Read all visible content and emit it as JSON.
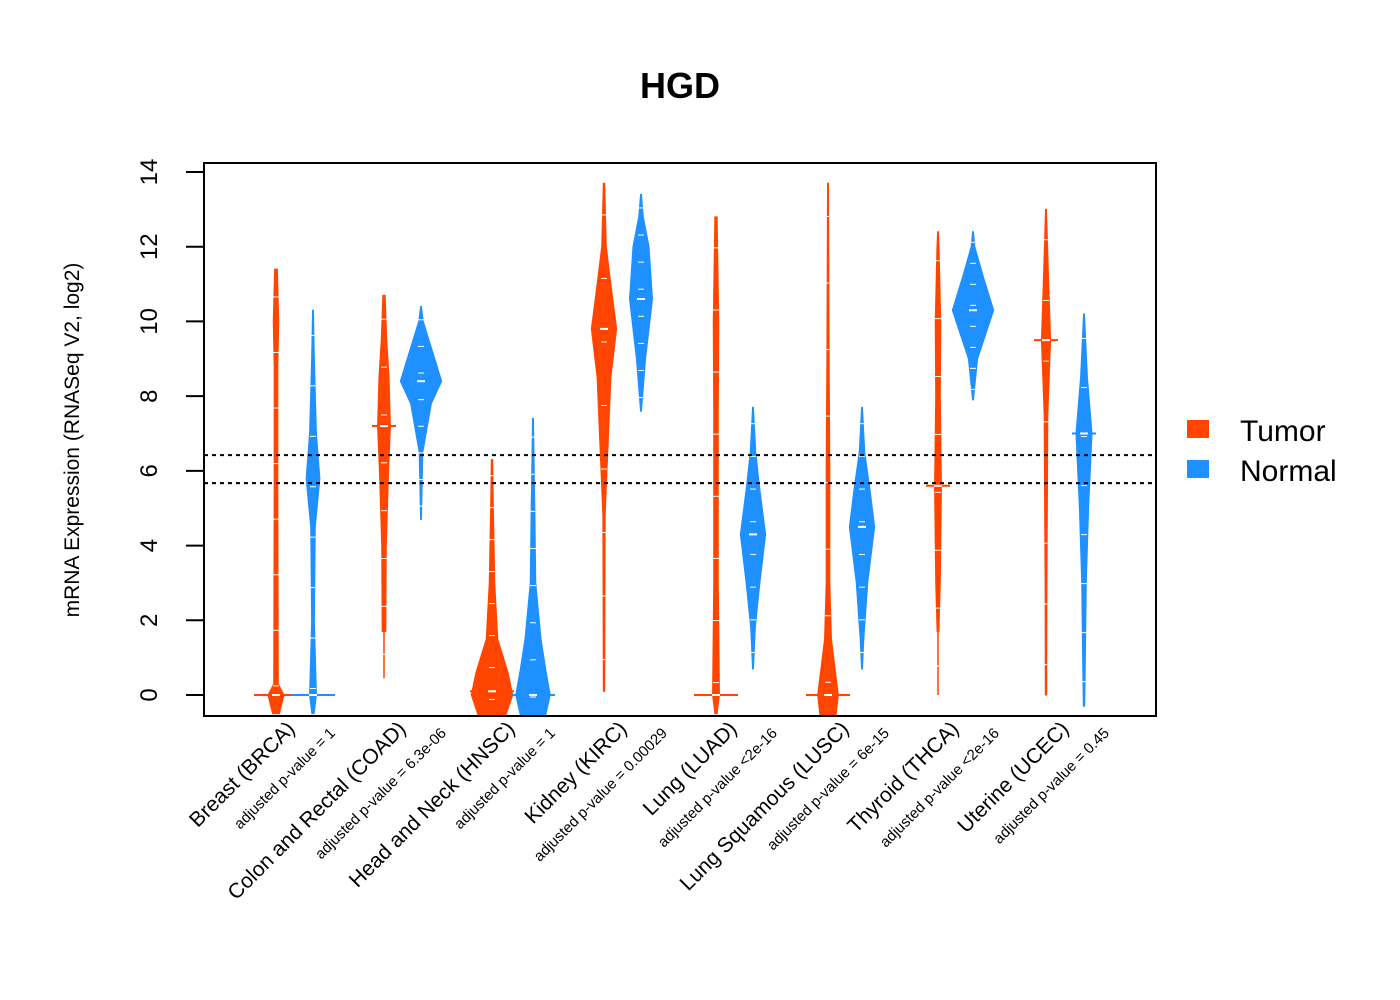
{
  "chart_data": {
    "type": "violin",
    "title": "HGD",
    "xlabel": "",
    "ylabel": "mRNA Expression (RNASeq V2, log2)",
    "ylim": [
      -0.55,
      14.25
    ],
    "yticks": [
      0,
      2,
      4,
      6,
      8,
      10,
      12,
      14
    ],
    "grid": false,
    "legend_position": "right",
    "reference_lines": [
      6.42,
      5.67
    ],
    "legend": [
      {
        "name": "Tumor",
        "color": "#FF4500"
      },
      {
        "name": "Normal",
        "color": "#1E90FF"
      }
    ],
    "categories": [
      {
        "label": "Breast (BRCA)",
        "p_value": "adjusted p-value = 1"
      },
      {
        "label": "Colon and Rectal (COAD)",
        "p_value": "adjusted p-value = 6.3e-06"
      },
      {
        "label": "Head and Neck (HNSC)",
        "p_value": "adjusted p-value = 1"
      },
      {
        "label": "Kidney (KIRC)",
        "p_value": "adjusted p-value = 0.00029"
      },
      {
        "label": "Lung (LUAD)",
        "p_value": "adjusted p-value <2e-16"
      },
      {
        "label": "Lung Squamous (LUSC)",
        "p_value": "adjusted p-value = 6e-15"
      },
      {
        "label": "Thyroid (THCA)",
        "p_value": "adjusted p-value <2e-16"
      },
      {
        "label": "Uterine (UCEC)",
        "p_value": "adjusted p-value = 0.45"
      }
    ],
    "series": [
      {
        "name": "Tumor",
        "color": "#FF4500",
        "values": [
          {
            "min": -0.5,
            "max": 11.4,
            "median": 0.0,
            "profile": [
              [
                -0.5,
                0.15
              ],
              [
                0,
                0.35
              ],
              [
                0.3,
                0.1
              ],
              [
                5.5,
                0.08
              ],
              [
                8.8,
                0.08
              ],
              [
                10,
                0.12
              ],
              [
                11.4,
                0.06
              ]
            ]
          },
          {
            "min": 0.45,
            "max": 10.7,
            "median": 7.2,
            "profile": [
              [
                1.7,
                0.08
              ],
              [
                4,
                0.1
              ],
              [
                6,
                0.2
              ],
              [
                7.2,
                0.28
              ],
              [
                8.5,
                0.22
              ],
              [
                9.5,
                0.12
              ],
              [
                10.7,
                0.05
              ]
            ]
          },
          {
            "min": -0.55,
            "max": 6.3,
            "median": 0.1,
            "profile": [
              [
                -0.55,
                0.6
              ],
              [
                0,
                0.9
              ],
              [
                0.6,
                0.7
              ],
              [
                1.5,
                0.25
              ],
              [
                3,
                0.12
              ],
              [
                5,
                0.06
              ],
              [
                6.3,
                0.03
              ]
            ]
          },
          {
            "min": 0.1,
            "max": 13.7,
            "median": 9.8,
            "profile": [
              [
                0.1,
                0.03
              ],
              [
                4.8,
                0.05
              ],
              [
                8.5,
                0.3
              ],
              [
                9.8,
                0.55
              ],
              [
                11,
                0.3
              ],
              [
                12,
                0.1
              ],
              [
                13.7,
                0.03
              ]
            ]
          },
          {
            "min": -0.5,
            "max": 12.8,
            "median": 0.0,
            "profile": [
              [
                -0.5,
                0.05
              ],
              [
                0,
                0.15
              ],
              [
                3,
                0.1
              ],
              [
                7.6,
                0.1
              ],
              [
                10,
                0.12
              ],
              [
                12.8,
                0.05
              ]
            ]
          },
          {
            "min": -0.55,
            "max": 13.7,
            "median": 0.0,
            "profile": [
              [
                -0.55,
                0.35
              ],
              [
                0,
                0.45
              ],
              [
                1.5,
                0.15
              ],
              [
                3,
                0.08
              ],
              [
                6,
                0.08
              ],
              [
                9,
                0.05
              ],
              [
                13.7,
                0.02
              ]
            ]
          },
          {
            "min": 0.0,
            "max": 12.4,
            "median": 5.6,
            "profile": [
              [
                1.7,
                0.04
              ],
              [
                3,
                0.1
              ],
              [
                5.6,
                0.15
              ],
              [
                8,
                0.1
              ],
              [
                10,
                0.12
              ],
              [
                11.9,
                0.05
              ],
              [
                12.4,
                0.02
              ]
            ]
          },
          {
            "min": 0.0,
            "max": 13.0,
            "median": 9.5,
            "profile": [
              [
                0,
                0.03
              ],
              [
                3,
                0.04
              ],
              [
                5,
                0.06
              ],
              [
                7.5,
                0.08
              ],
              [
                9.5,
                0.2
              ],
              [
                11,
                0.12
              ],
              [
                13,
                0.02
              ]
            ]
          }
        ]
      },
      {
        "name": "Normal",
        "color": "#1E90FF",
        "values": [
          {
            "min": -0.5,
            "max": 10.3,
            "median": 0.0,
            "profile": [
              [
                -0.5,
                0.05
              ],
              [
                0,
                0.15
              ],
              [
                2,
                0.06
              ],
              [
                4.5,
                0.1
              ],
              [
                5.8,
                0.3
              ],
              [
                7,
                0.15
              ],
              [
                9,
                0.06
              ],
              [
                10.3,
                0.02
              ]
            ]
          },
          {
            "min": 4.7,
            "max": 10.4,
            "median": 8.4,
            "profile": [
              [
                4.7,
                0.02
              ],
              [
                6.5,
                0.08
              ],
              [
                7.8,
                0.45
              ],
              [
                8.4,
                0.9
              ],
              [
                9.2,
                0.5
              ],
              [
                10,
                0.1
              ],
              [
                10.4,
                0.02
              ]
            ]
          },
          {
            "min": -0.55,
            "max": 7.4,
            "median": 0.0,
            "profile": [
              [
                -0.55,
                0.55
              ],
              [
                0,
                0.75
              ],
              [
                0.7,
                0.55
              ],
              [
                1.5,
                0.35
              ],
              [
                3,
                0.12
              ],
              [
                5,
                0.08
              ],
              [
                7.4,
                0.02
              ]
            ]
          },
          {
            "min": 7.6,
            "max": 13.4,
            "median": 10.6,
            "profile": [
              [
                7.6,
                0.02
              ],
              [
                9,
                0.2
              ],
              [
                10.6,
                0.5
              ],
              [
                12,
                0.35
              ],
              [
                12.8,
                0.1
              ],
              [
                13.4,
                0.02
              ]
            ]
          },
          {
            "min": 0.7,
            "max": 7.7,
            "median": 4.3,
            "profile": [
              [
                0.7,
                0.02
              ],
              [
                1.8,
                0.1
              ],
              [
                3,
                0.3
              ],
              [
                4.3,
                0.55
              ],
              [
                5.5,
                0.3
              ],
              [
                6.5,
                0.12
              ],
              [
                7.7,
                0.02
              ]
            ]
          },
          {
            "min": 0.7,
            "max": 7.7,
            "median": 4.5,
            "profile": [
              [
                0.7,
                0.02
              ],
              [
                1.5,
                0.08
              ],
              [
                3,
                0.25
              ],
              [
                4.5,
                0.55
              ],
              [
                5.5,
                0.35
              ],
              [
                6.5,
                0.12
              ],
              [
                7.7,
                0.02
              ]
            ]
          },
          {
            "min": 7.9,
            "max": 12.4,
            "median": 10.3,
            "profile": [
              [
                7.9,
                0.02
              ],
              [
                9,
                0.2
              ],
              [
                10.3,
                0.9
              ],
              [
                11.2,
                0.45
              ],
              [
                12,
                0.08
              ],
              [
                12.4,
                0.02
              ]
            ]
          },
          {
            "min": -0.3,
            "max": 10.2,
            "median": 7.0,
            "profile": [
              [
                -0.3,
                0.03
              ],
              [
                1,
                0.06
              ],
              [
                3,
                0.1
              ],
              [
                5,
                0.2
              ],
              [
                7,
                0.35
              ],
              [
                8.5,
                0.15
              ],
              [
                10.2,
                0.02
              ]
            ]
          }
        ]
      }
    ]
  }
}
